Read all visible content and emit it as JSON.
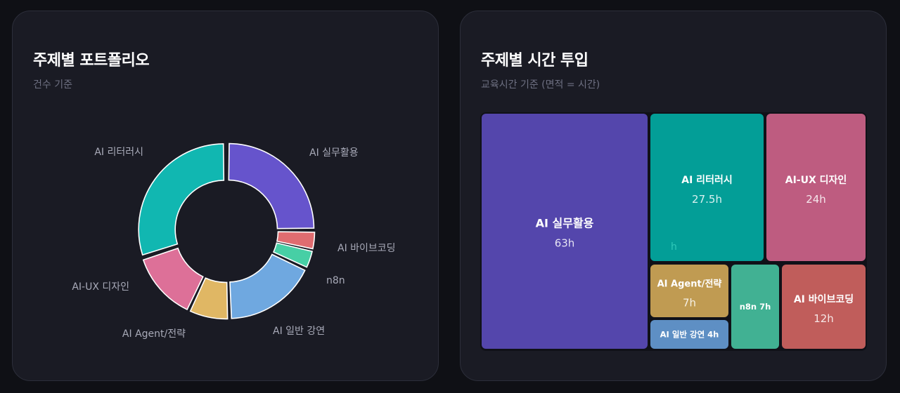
{
  "colors": {
    "background": "#0f1015",
    "card": "#1a1b24",
    "border": "#2c2e3a",
    "title": "#ffffff",
    "subtitle": "#6e7082",
    "label": "#a8aab8"
  },
  "chart_data": [
    {
      "type": "pie",
      "variant": "donut",
      "title": "주제별 포트폴리오",
      "subtitle": "건수 기준",
      "slices": [
        {
          "label": "AI 실무활용",
          "value": 25,
          "color": "#6654cc"
        },
        {
          "label": "AI 바이브코딩",
          "value": 3.5,
          "color": "#e06c70"
        },
        {
          "label": "n8n",
          "value": 3.5,
          "color": "#47cfa5"
        },
        {
          "label": "AI 일반 강연",
          "value": 17.5,
          "color": "#6fa8e0"
        },
        {
          "label": "AI Agent/전략",
          "value": 7.5,
          "color": "#e0b764"
        },
        {
          "label": "AI-UX 디자인",
          "value": 13,
          "color": "#dd7098"
        },
        {
          "label": "AI 리터러시",
          "value": 30,
          "color": "#11b7b1"
        }
      ]
    },
    {
      "type": "treemap",
      "title": "주제별 시간 투입",
      "subtitle": "교육시간 기준 (면적 = 시간)",
      "items": [
        {
          "label": "AI 실무활용",
          "value_label": "63h",
          "value": 63,
          "color": "#5446ac"
        },
        {
          "label": "AI 리터러시",
          "value_label": "27.5h",
          "value": 27.5,
          "color": "#039e97"
        },
        {
          "label": "AI-UX 디자인",
          "value_label": "24h",
          "value": 24,
          "color": "#be5c80"
        },
        {
          "label": "AI Agent/전략",
          "value_label": "7h",
          "value": 7,
          "color": "#c09b52"
        },
        {
          "label": "AI 일반 강연",
          "value_label": "4h",
          "value": 4,
          "color": "#5e8fc4"
        },
        {
          "label": "n8n",
          "value_label": "7h",
          "value": 7,
          "color": "#41b193"
        },
        {
          "label": "AI 바이브코딩",
          "value_label": "12h",
          "value": 12,
          "color": "#c05d5b"
        }
      ],
      "stray_label": "h"
    }
  ]
}
